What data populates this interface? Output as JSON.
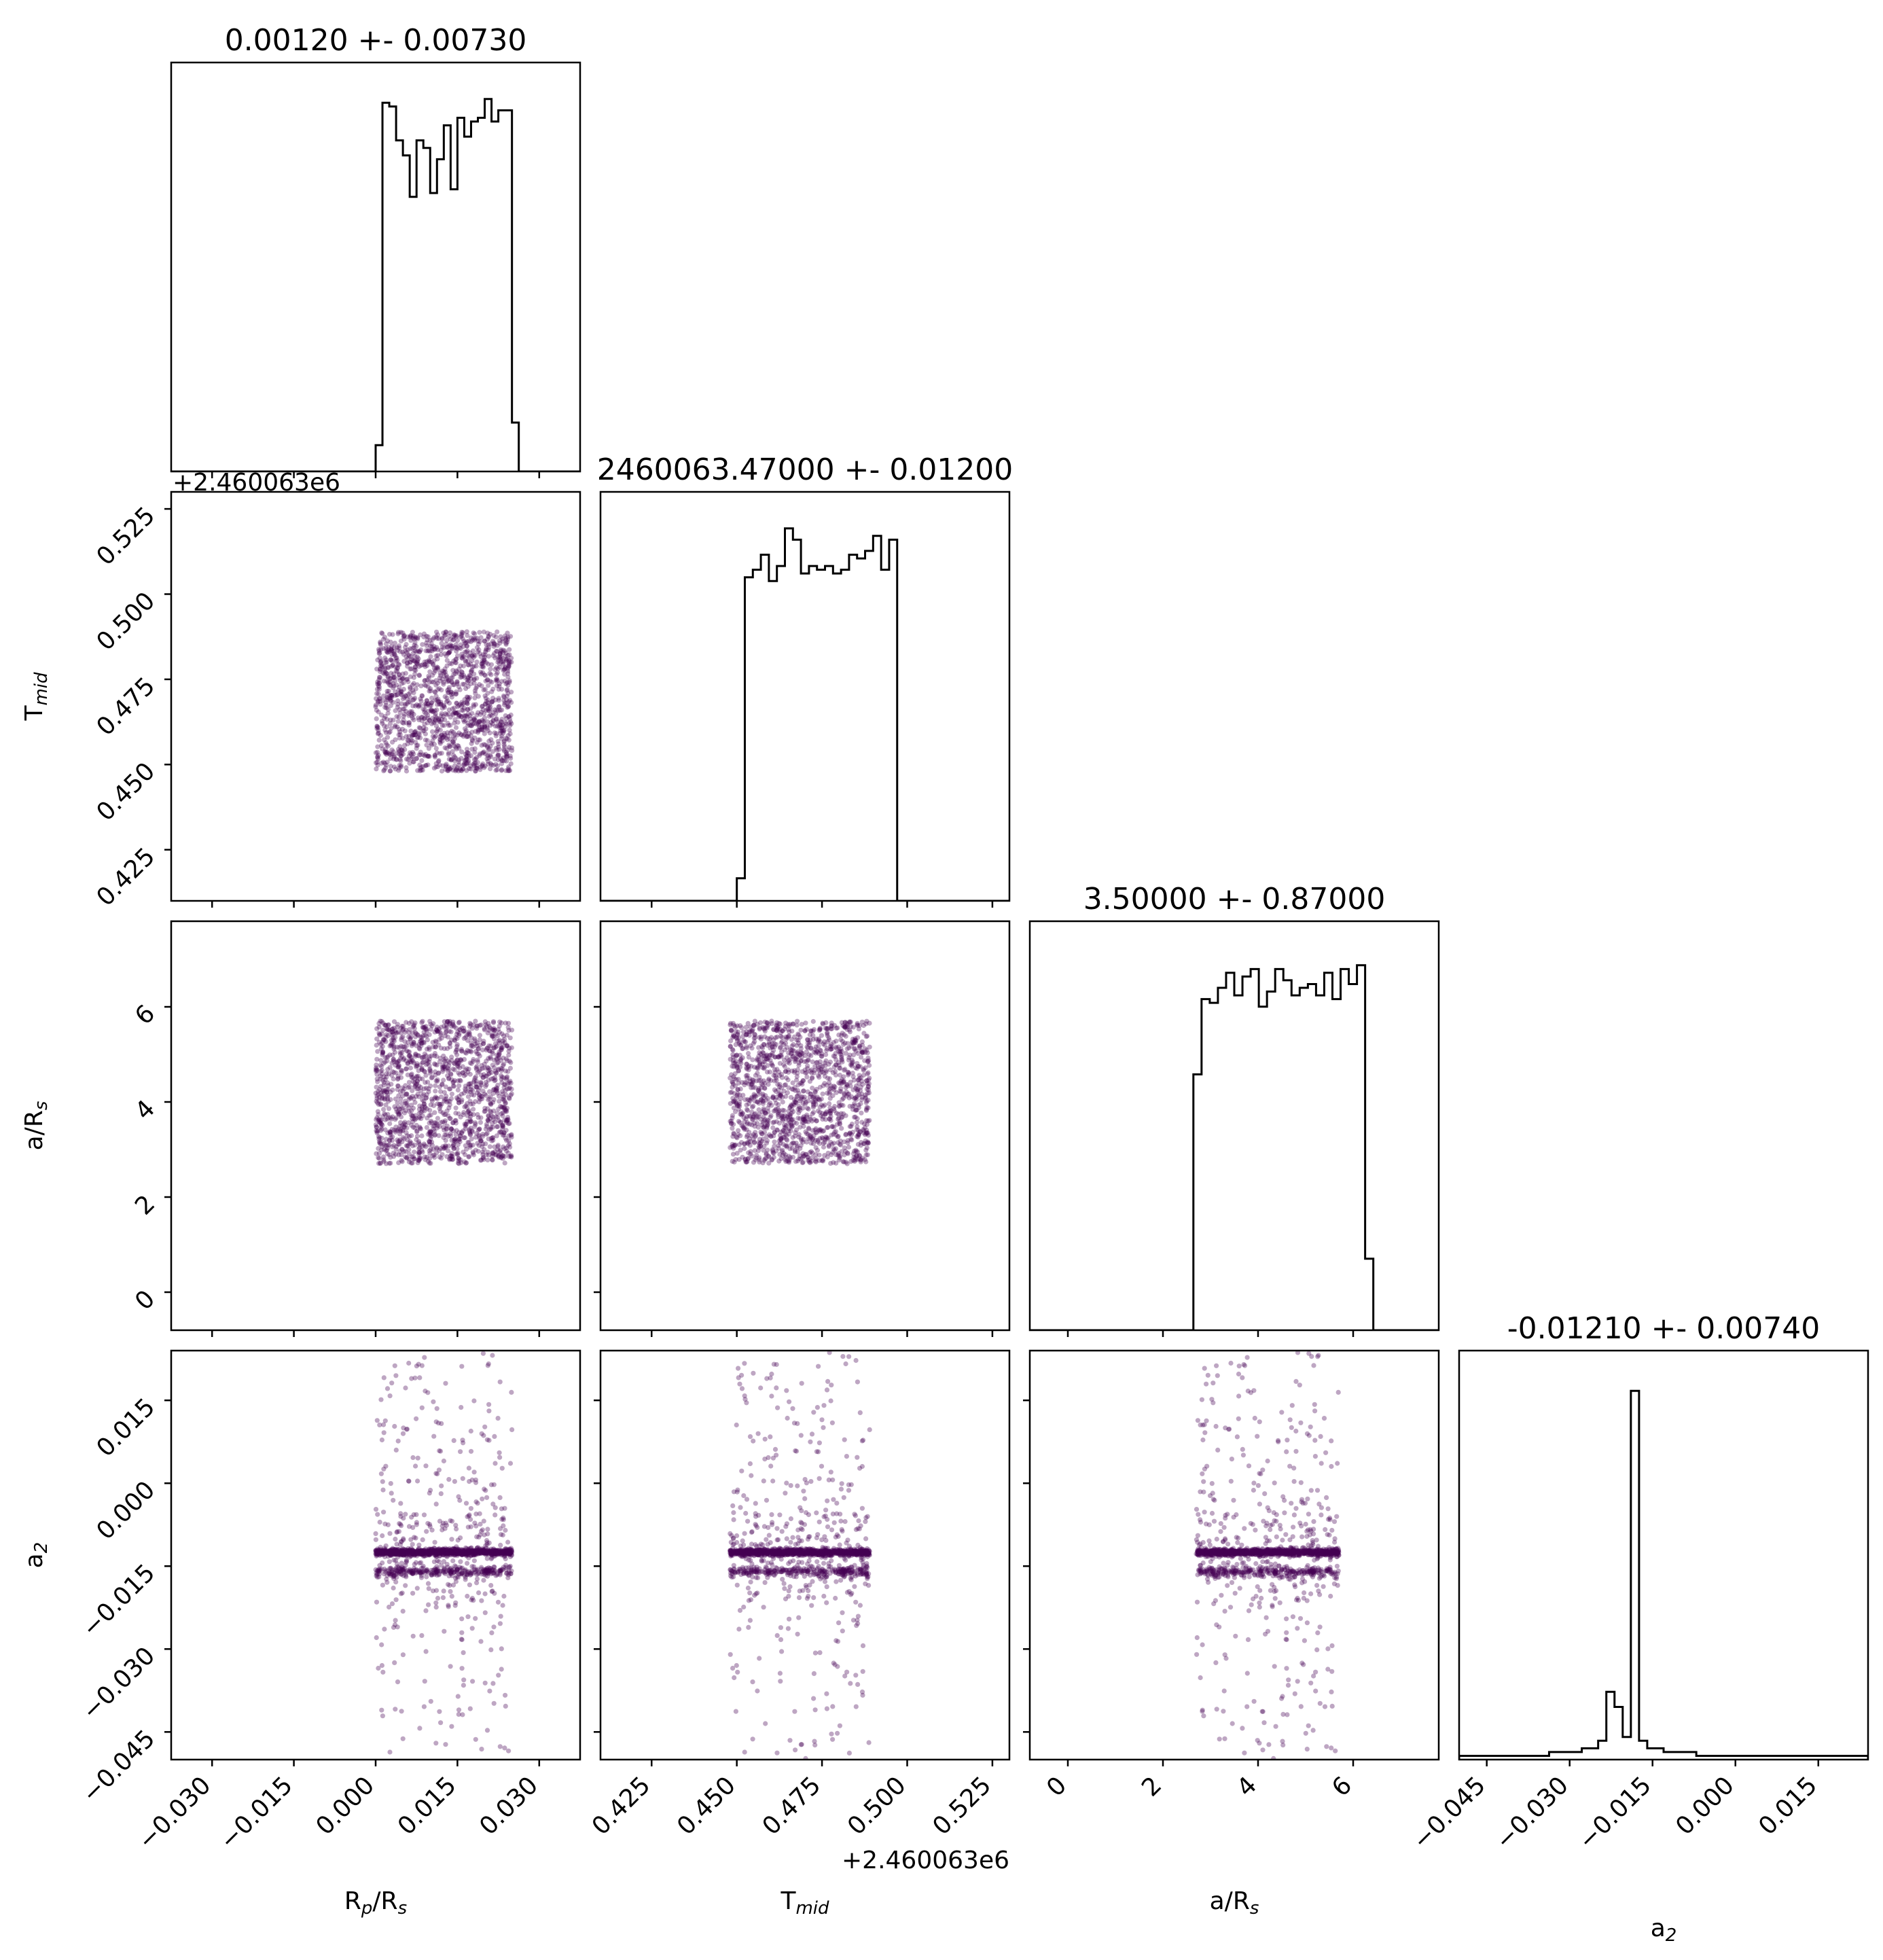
{
  "chart_data": {
    "type": "corner",
    "parameters": [
      {
        "key": "rp",
        "label_main": "R",
        "label_sub1": "p",
        "label_mid": "/R",
        "label_sub2": "s",
        "title": "0.00120 +- 0.00730",
        "range": [
          -0.0375,
          0.0375
        ],
        "ticks": [
          -0.03,
          -0.015,
          0.0,
          0.015,
          0.03
        ],
        "tick_labels": [
          "−0.030",
          "−0.015",
          "0.000",
          "0.015",
          "0.030"
        ],
        "offset": "",
        "hist": [
          0.0,
          0.0,
          0.0,
          0.0,
          0.0,
          0.0,
          0.0,
          0.0,
          0.0,
          0.0,
          0.0,
          0.0,
          0.0,
          0.0,
          0.0,
          0.0,
          0.0,
          0.0,
          0.0,
          0.0,
          0.0,
          0.0,
          0.0,
          0.0,
          0.0,
          0.0,
          0.0,
          0.0,
          0.0,
          0.0,
          0.07,
          0.98,
          0.97,
          0.88,
          0.84,
          0.73,
          0.88,
          0.86,
          0.74,
          0.83,
          0.92,
          0.75,
          0.94,
          0.89,
          0.93,
          0.94,
          0.99,
          0.93,
          0.96,
          0.96,
          0.13,
          0.0,
          0.0,
          0.0,
          0.0,
          0.0,
          0.0,
          0.0,
          0.0,
          0.0
        ]
      },
      {
        "key": "tmid",
        "label_main": "T",
        "label_sub1": "mid",
        "label_mid": "",
        "label_sub2": "",
        "title": "2460063.47000 +- 0.01200",
        "range": [
          0.41,
          0.53
        ],
        "ticks": [
          0.425,
          0.45,
          0.475,
          0.5,
          0.525
        ],
        "tick_labels": [
          "0.425",
          "0.450",
          "0.475",
          "0.500",
          "0.525"
        ],
        "offset": "+2.460063e6",
        "hist": [
          0.0,
          0.0,
          0.0,
          0.0,
          0.0,
          0.0,
          0.0,
          0.0,
          0.0,
          0.0,
          0.0,
          0.0,
          0.0,
          0.0,
          0.0,
          0.0,
          0.0,
          0.06,
          0.86,
          0.88,
          0.92,
          0.85,
          0.89,
          0.99,
          0.96,
          0.87,
          0.89,
          0.88,
          0.89,
          0.87,
          0.88,
          0.92,
          0.91,
          0.93,
          0.97,
          0.88,
          0.96,
          0.0,
          0.0,
          0.0,
          0.0,
          0.0,
          0.0,
          0.0,
          0.0,
          0.0,
          0.0,
          0.0,
          0.0,
          0.0,
          0.0
        ]
      },
      {
        "key": "ars",
        "label_main": "a/R",
        "label_sub1": "",
        "label_mid": "",
        "label_sub2": "s",
        "title": "3.50000 +- 0.87000",
        "range": [
          -0.8,
          7.8
        ],
        "ticks": [
          0,
          2,
          4,
          6
        ],
        "tick_labels": [
          "0",
          "2",
          "4",
          "6"
        ],
        "offset": "",
        "hist": [
          0.0,
          0.0,
          0.0,
          0.0,
          0.0,
          0.0,
          0.0,
          0.0,
          0.0,
          0.0,
          0.0,
          0.0,
          0.0,
          0.0,
          0.0,
          0.0,
          0.0,
          0.0,
          0.0,
          0.0,
          0.68,
          0.88,
          0.87,
          0.91,
          0.95,
          0.89,
          0.94,
          0.96,
          0.86,
          0.9,
          0.96,
          0.93,
          0.89,
          0.91,
          0.92,
          0.89,
          0.95,
          0.88,
          0.96,
          0.92,
          0.97,
          0.19,
          0.0,
          0.0,
          0.0,
          0.0,
          0.0,
          0.0,
          0.0,
          0.0
        ]
      },
      {
        "key": "a2",
        "label_main": "a",
        "label_sub1": "",
        "label_mid": "",
        "label_sub2": "2",
        "title": "-0.01210 +- 0.00740",
        "range": [
          -0.05,
          0.024
        ],
        "ticks": [
          -0.045,
          -0.03,
          -0.015,
          0.0,
          0.015
        ],
        "tick_labels": [
          "−0.045",
          "−0.030",
          "−0.015",
          "0.000",
          "0.015"
        ],
        "offset": "",
        "hist": [
          0.01,
          0.01,
          0.01,
          0.01,
          0.01,
          0.01,
          0.01,
          0.01,
          0.01,
          0.01,
          0.01,
          0.02,
          0.02,
          0.02,
          0.02,
          0.03,
          0.03,
          0.05,
          0.18,
          0.14,
          0.06,
          0.98,
          0.05,
          0.03,
          0.03,
          0.02,
          0.02,
          0.02,
          0.02,
          0.01,
          0.01,
          0.01,
          0.01,
          0.01,
          0.01,
          0.01,
          0.01,
          0.01,
          0.01,
          0.01,
          0.01,
          0.01,
          0.01,
          0.01,
          0.01,
          0.01,
          0.01,
          0.01,
          0.01,
          0.01
        ]
      }
    ],
    "sample_box": {
      "rp": [
        0.0,
        0.025
      ],
      "tmid": [
        0.448,
        0.489
      ],
      "ars": [
        2.7,
        5.7
      ],
      "a2_band": [
        -0.0125,
        -0.016
      ],
      "a2_range": [
        -0.05,
        0.024
      ]
    },
    "point_color": "#440154",
    "point_alpha": 0.35,
    "line_color": "#000000"
  }
}
